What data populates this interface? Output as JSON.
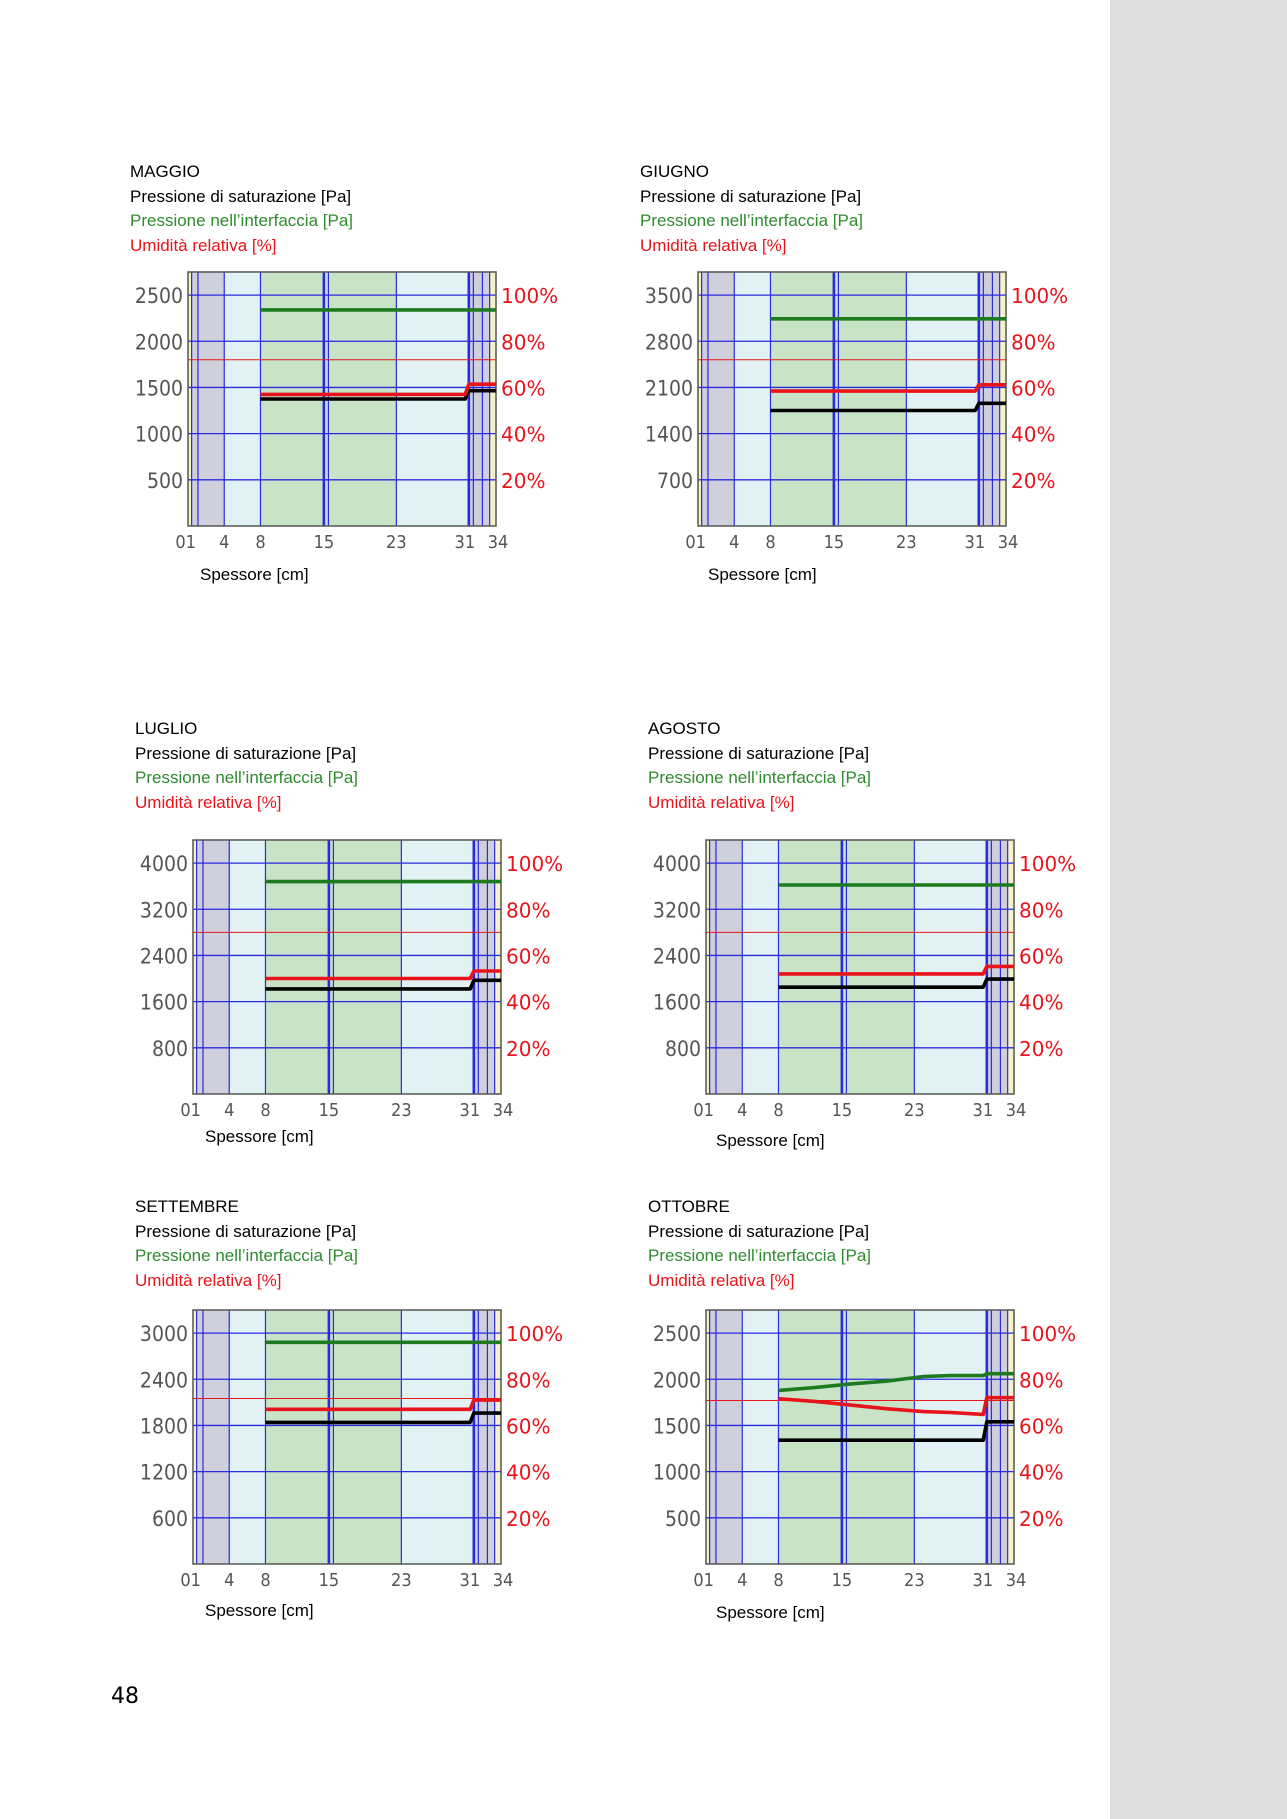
{
  "page_number": "48",
  "chart_data": [
    {
      "type": "line",
      "month": "MAGGIO",
      "legend": [
        "Pressione di saturazione [Pa]",
        "Pressione nell’interfaccia [Pa]",
        "Umidità relativa [%]"
      ],
      "xlabel": "Spessore [cm]",
      "x_ticks": [
        "01",
        "4",
        "8",
        "15",
        "23",
        "31",
        "34"
      ],
      "y_ticks_left": [
        2500,
        2000,
        1500,
        1000,
        500
      ],
      "y_ticks_right": [
        "100%",
        "80%",
        "60%",
        "40%",
        "20%"
      ],
      "ylim": [
        0,
        2500
      ],
      "series": [
        {
          "name": "Pressione di saturazione [Pa]",
          "color": "#000000",
          "x": [
            8,
            30.6,
            31,
            34
          ],
          "y": [
            1375,
            1375,
            1465,
            1465
          ]
        },
        {
          "name": "Pressione nell’interfaccia [Pa]",
          "color": "#1e7a1e",
          "x": [
            8,
            34
          ],
          "y": [
            2340,
            2340
          ]
        },
        {
          "name": "Umidità relativa [%]",
          "color": "#e8141b",
          "x": [
            8,
            30.6,
            31,
            34
          ],
          "y": [
            1425,
            1425,
            1535,
            1535
          ]
        }
      ],
      "reference_line_80": 1800
    },
    {
      "type": "line",
      "month": "GIUGNO",
      "legend": [
        "Pressione di saturazione [Pa]",
        "Pressione nell’interfaccia [Pa]",
        "Umidità relativa [%]"
      ],
      "xlabel": "Spessore [cm]",
      "x_ticks": [
        "01",
        "4",
        "8",
        "15",
        "23",
        "31",
        "34"
      ],
      "y_ticks_left": [
        3500,
        2800,
        2100,
        1400,
        700
      ],
      "y_ticks_right": [
        "100%",
        "80%",
        "60%",
        "40%",
        "20%"
      ],
      "ylim": [
        0,
        3500
      ],
      "series": [
        {
          "name": "Pressione di saturazione [Pa]",
          "color": "#000000",
          "x": [
            8,
            30.6,
            31,
            34
          ],
          "y": [
            1750,
            1750,
            1860,
            1860
          ]
        },
        {
          "name": "Pressione nell’interfaccia [Pa]",
          "color": "#1e7a1e",
          "x": [
            8,
            34
          ],
          "y": [
            3140,
            3140
          ]
        },
        {
          "name": "Umidità relativa [%]",
          "color": "#e8141b",
          "x": [
            8,
            30.6,
            31,
            34
          ],
          "y": [
            2045,
            2045,
            2140,
            2140
          ]
        }
      ],
      "reference_line_80": 2520
    },
    {
      "type": "line",
      "month": "LUGLIO",
      "legend": [
        "Pressione di saturazione [Pa]",
        "Pressione nell’interfaccia [Pa]",
        "Umidità relativa [%]"
      ],
      "xlabel": "Spessore [cm]",
      "x_ticks": [
        "01",
        "4",
        "8",
        "15",
        "23",
        "31",
        "34"
      ],
      "y_ticks_left": [
        4000,
        3200,
        2400,
        1600,
        800
      ],
      "y_ticks_right": [
        "100%",
        "80%",
        "60%",
        "40%",
        "20%"
      ],
      "ylim": [
        0,
        4000
      ],
      "series": [
        {
          "name": "Pressione di saturazione [Pa]",
          "color": "#000000",
          "x": [
            8,
            30.6,
            31,
            34
          ],
          "y": [
            1820,
            1820,
            1970,
            1970
          ]
        },
        {
          "name": "Pressione nell’interfaccia [Pa]",
          "color": "#1e7a1e",
          "x": [
            8,
            34
          ],
          "y": [
            3680,
            3680
          ]
        },
        {
          "name": "Umidità relativa [%]",
          "color": "#e8141b",
          "x": [
            8,
            30.6,
            31,
            34
          ],
          "y": [
            2000,
            2000,
            2130,
            2130
          ]
        }
      ],
      "reference_line_80": 2800
    },
    {
      "type": "line",
      "month": "AGOSTO",
      "legend": [
        "Pressione di saturazione [Pa]",
        "Pressione nell’interfaccia [Pa]",
        "Umidità relativa [%]"
      ],
      "xlabel": "Spessore [cm]",
      "x_ticks": [
        "01",
        "4",
        "8",
        "15",
        "23",
        "31",
        "34"
      ],
      "y_ticks_left": [
        4000,
        3200,
        2400,
        1600,
        800
      ],
      "y_ticks_right": [
        "100%",
        "80%",
        "60%",
        "40%",
        "20%"
      ],
      "ylim": [
        0,
        4000
      ],
      "series": [
        {
          "name": "Pressione di saturazione [Pa]",
          "color": "#000000",
          "x": [
            8,
            30.6,
            31,
            34
          ],
          "y": [
            1850,
            1850,
            1990,
            1990
          ]
        },
        {
          "name": "Pressione nell’interfaccia [Pa]",
          "color": "#1e7a1e",
          "x": [
            8,
            34
          ],
          "y": [
            3620,
            3620
          ]
        },
        {
          "name": "Umidità relativa [%]",
          "color": "#e8141b",
          "x": [
            8,
            30.6,
            31,
            34
          ],
          "y": [
            2080,
            2080,
            2210,
            2210
          ]
        }
      ],
      "reference_line_80": 2800
    },
    {
      "type": "line",
      "month": "SETTEMBRE",
      "legend": [
        "Pressione di saturazione [Pa]",
        "Pressione nell’interfaccia [Pa]",
        "Umidità relativa [%]"
      ],
      "xlabel": "Spessore [cm]",
      "x_ticks": [
        "01",
        "4",
        "8",
        "15",
        "23",
        "31",
        "34"
      ],
      "y_ticks_left": [
        3000,
        2400,
        1800,
        1200,
        600
      ],
      "y_ticks_right": [
        "100%",
        "80%",
        "60%",
        "40%",
        "20%"
      ],
      "ylim": [
        0,
        3000
      ],
      "series": [
        {
          "name": "Pressione di saturazione [Pa]",
          "color": "#000000",
          "x": [
            8,
            30.6,
            31,
            34
          ],
          "y": [
            1840,
            1840,
            1960,
            1960
          ]
        },
        {
          "name": "Pressione nell’interfaccia [Pa]",
          "color": "#1e7a1e",
          "x": [
            8,
            34
          ],
          "y": [
            2880,
            2880
          ]
        },
        {
          "name": "Umidità relativa [%]",
          "color": "#e8141b",
          "x": [
            8,
            30.6,
            31,
            34
          ],
          "y": [
            2010,
            2010,
            2130,
            2130
          ]
        }
      ],
      "reference_line_80": 2150
    },
    {
      "type": "line",
      "month": "OTTOBRE",
      "legend": [
        "Pressione di saturazione [Pa]",
        "Pressione nell’interfaccia [Pa]",
        "Umidità relativa [%]"
      ],
      "xlabel": "Spessore [cm]",
      "x_ticks": [
        "01",
        "4",
        "8",
        "15",
        "23",
        "31",
        "34"
      ],
      "y_ticks_left": [
        2500,
        2000,
        1500,
        1000,
        500
      ],
      "y_ticks_right": [
        "100%",
        "80%",
        "60%",
        "40%",
        "20%"
      ],
      "ylim": [
        0,
        2500
      ],
      "series": [
        {
          "name": "Pressione di saturazione [Pa]",
          "color": "#000000",
          "x": [
            8,
            30.6,
            31,
            34
          ],
          "y": [
            1340,
            1340,
            1540,
            1540
          ]
        },
        {
          "name": "Pressione nell’interfaccia [Pa]",
          "color": "#1e7a1e",
          "x": [
            8,
            12,
            16,
            20,
            24,
            27,
            30.6,
            31,
            34
          ],
          "y": [
            1880,
            1910,
            1950,
            1980,
            2030,
            2040,
            2040,
            2060,
            2060
          ]
        },
        {
          "name": "Umidità relativa [%]",
          "color": "#e8141b",
          "x": [
            8,
            12,
            16,
            20,
            24,
            27,
            30.6,
            31,
            34
          ],
          "y": [
            1790,
            1760,
            1720,
            1680,
            1650,
            1640,
            1620,
            1800,
            1800
          ]
        }
      ],
      "reference_line_80": 1770
    }
  ]
}
